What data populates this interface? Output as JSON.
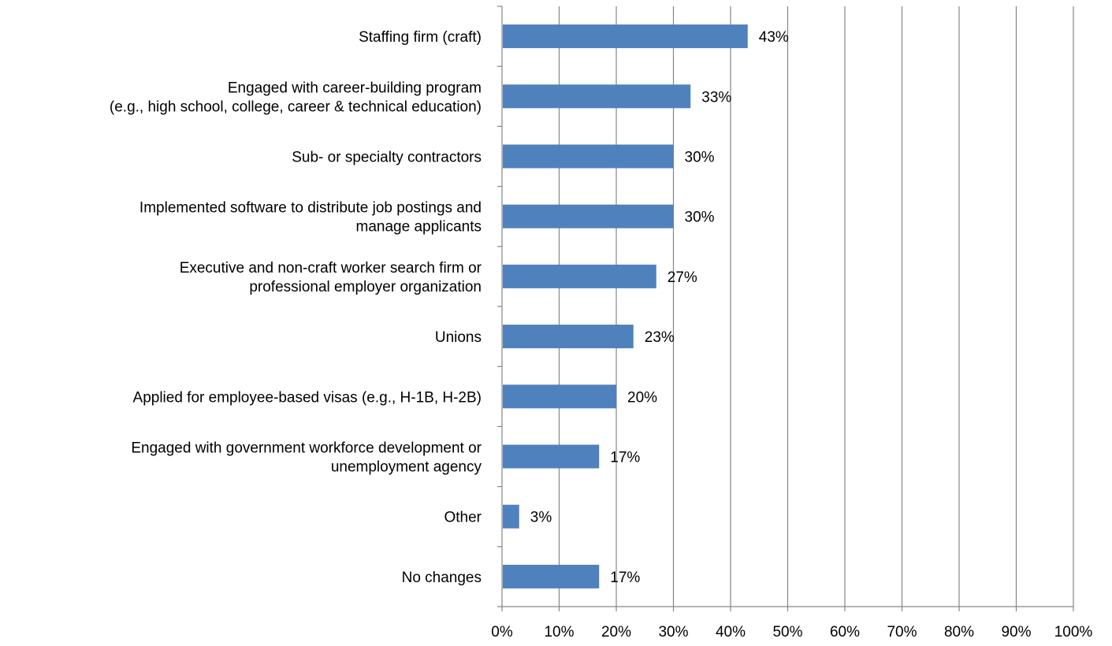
{
  "chart_data": {
    "type": "bar",
    "orientation": "horizontal",
    "categories": [
      [
        "Staffing firm (craft)"
      ],
      [
        "Engaged with career-building program",
        "(e.g., high school, college, career & technical education)"
      ],
      [
        "Sub- or specialty contractors"
      ],
      [
        "Implemented software to distribute job postings and",
        "manage applicants"
      ],
      [
        "Executive and non-craft worker search firm or",
        "professional employer organization"
      ],
      [
        "Unions"
      ],
      [
        "Applied for employee-based visas (e.g., H-1B, H-2B)"
      ],
      [
        "Engaged with government workforce development or",
        "unemployment agency"
      ],
      [
        "Other"
      ],
      [
        "No changes"
      ]
    ],
    "values": [
      43,
      33,
      30,
      30,
      27,
      23,
      20,
      17,
      3,
      17
    ],
    "value_labels": [
      "43%",
      "33%",
      "30%",
      "30%",
      "27%",
      "23%",
      "20%",
      "17%",
      "3%",
      "17%"
    ],
    "xlim": [
      0,
      100
    ],
    "xticks": [
      0,
      10,
      20,
      30,
      40,
      50,
      60,
      70,
      80,
      90,
      100
    ],
    "xtick_labels": [
      "0%",
      "10%",
      "20%",
      "30%",
      "40%",
      "50%",
      "60%",
      "70%",
      "80%",
      "90%",
      "100%"
    ],
    "grid": "vertical",
    "legend": "none",
    "colors": {
      "bar": "#4f81bd",
      "grid": "#868686",
      "axis": "#868686"
    }
  }
}
